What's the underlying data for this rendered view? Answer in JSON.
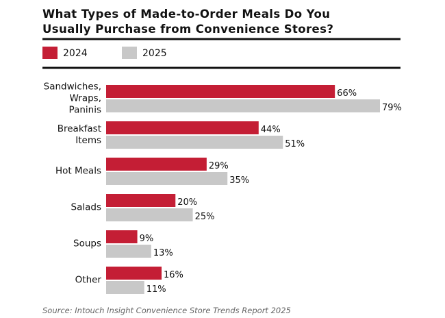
{
  "chart_data": {
    "type": "bar",
    "orientation": "horizontal",
    "title": "What Types of Made-to-Order Meals Do You\nUsually Purchase from Convenience Stores?",
    "categories": [
      "Sandwiches,\nWraps,\nPaninis",
      "Breakfast\nItems",
      "Hot Meals",
      "Salads",
      "Soups",
      "Other"
    ],
    "series": [
      {
        "name": "2024",
        "color": "#c41e35",
        "values": [
          66,
          44,
          29,
          20,
          9,
          16
        ],
        "value_labels": [
          "66%",
          "44%",
          "29%",
          "20%",
          "9%",
          "16%"
        ]
      },
      {
        "name": "2025",
        "color": "#c8c8c8",
        "values": [
          79,
          51,
          35,
          25,
          13,
          11
        ],
        "value_labels": [
          "79%",
          "51%",
          "35%",
          "25%",
          "13%",
          "11%"
        ]
      }
    ],
    "source": "Source: Intouch Insight Convenience Store Trends Report 2025"
  }
}
